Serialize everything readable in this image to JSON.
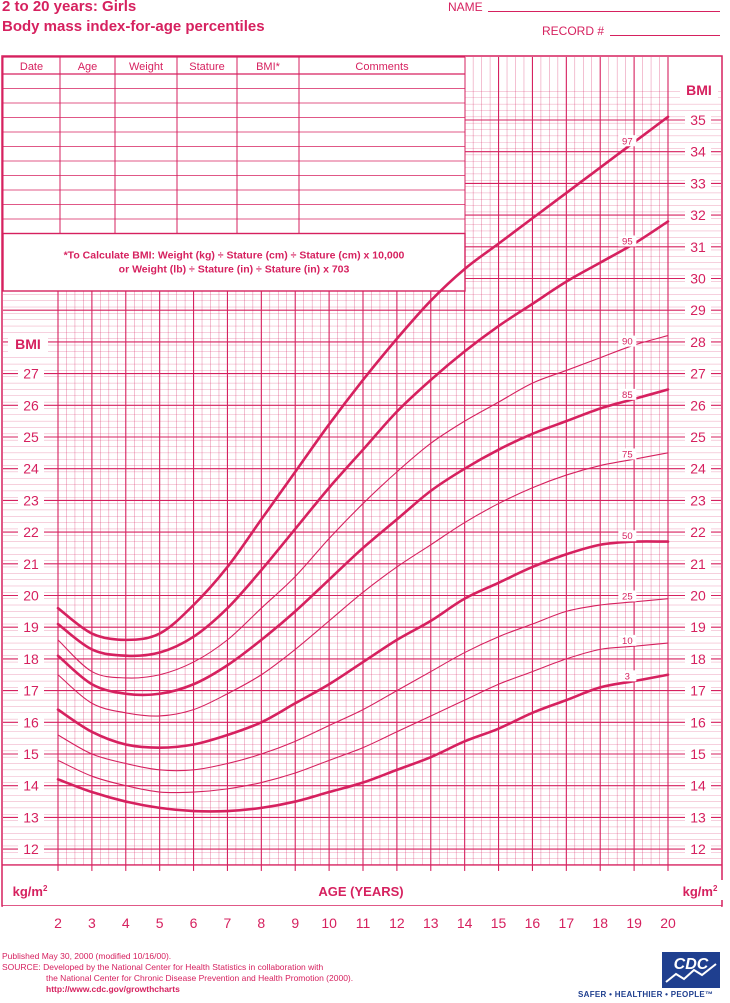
{
  "header": {
    "title_line1": "2 to 20 years: Girls",
    "title_line2": "Body mass index-for-age percentiles",
    "name_label": "NAME",
    "record_label": "RECORD #"
  },
  "record_table": {
    "columns": [
      "Date",
      "Age",
      "Weight",
      "Stature",
      "BMI*",
      "Comments"
    ],
    "row_count": 11
  },
  "formula": {
    "line1": "*To Calculate BMI: Weight (kg) ÷ Stature (cm) ÷ Stature (cm) x 10,000",
    "line2": "or Weight (lb) ÷ Stature (in) ÷ Stature (in) x 703"
  },
  "footer": {
    "line1": "Published May 30, 2000 (modified 10/16/00).",
    "line2": "SOURCE: Developed by the National Center for Health Statistics in collaboration with",
    "line3": "the National Center for Chronic Disease Prevention and Health Promotion (2000).",
    "url": "http://www.cdc.gov/growthcharts",
    "logo_text": "CDC",
    "tagline": "SAFER • HEALTHIER • PEOPLE™"
  },
  "colors": {
    "accent": "#d6215f",
    "logo_blue": "#1f3f8f"
  },
  "chart_data": {
    "type": "line",
    "xlabel": "AGE (YEARS)",
    "ylabel": "BMI",
    "y_unit": "kg/m²",
    "xlim": [
      2,
      20
    ],
    "ylim": [
      11,
      36
    ],
    "x_ticks": [
      2,
      3,
      4,
      5,
      6,
      7,
      8,
      9,
      10,
      11,
      12,
      13,
      14,
      15,
      16,
      17,
      18,
      19,
      20
    ],
    "y_ticks_right": [
      12,
      13,
      14,
      15,
      16,
      17,
      18,
      19,
      20,
      21,
      22,
      23,
      24,
      25,
      26,
      27,
      28,
      29,
      30,
      31,
      32,
      33,
      34,
      35
    ],
    "y_ticks_left": [
      12,
      13,
      14,
      15,
      16,
      17,
      18,
      19,
      20,
      21,
      22,
      23,
      24,
      25,
      26,
      27
    ],
    "x": [
      2,
      3,
      4,
      5,
      6,
      7,
      8,
      9,
      10,
      11,
      12,
      13,
      14,
      15,
      16,
      17,
      18,
      19,
      20
    ],
    "series": [
      {
        "name": "97",
        "bold": true,
        "values": [
          19.6,
          18.8,
          18.6,
          18.8,
          19.7,
          20.9,
          22.4,
          23.9,
          25.4,
          26.8,
          28.1,
          29.3,
          30.3,
          31.1,
          31.9,
          32.7,
          33.5,
          34.3,
          35.1
        ]
      },
      {
        "name": "95",
        "bold": true,
        "values": [
          19.1,
          18.3,
          18.1,
          18.2,
          18.7,
          19.6,
          20.8,
          22.1,
          23.4,
          24.6,
          25.8,
          26.8,
          27.7,
          28.5,
          29.2,
          29.9,
          30.5,
          31.1,
          31.8
        ]
      },
      {
        "name": "90",
        "bold": false,
        "values": [
          18.6,
          17.6,
          17.4,
          17.5,
          17.9,
          18.6,
          19.6,
          20.6,
          21.8,
          22.9,
          23.9,
          24.8,
          25.5,
          26.1,
          26.7,
          27.1,
          27.5,
          27.9,
          28.2
        ]
      },
      {
        "name": "85",
        "bold": true,
        "values": [
          18.1,
          17.2,
          16.9,
          16.9,
          17.2,
          17.8,
          18.6,
          19.5,
          20.5,
          21.5,
          22.4,
          23.3,
          24.0,
          24.6,
          25.1,
          25.5,
          25.9,
          26.2,
          26.5
        ]
      },
      {
        "name": "75",
        "bold": false,
        "values": [
          17.5,
          16.6,
          16.3,
          16.2,
          16.4,
          16.9,
          17.5,
          18.3,
          19.2,
          20.1,
          20.9,
          21.6,
          22.3,
          22.9,
          23.4,
          23.8,
          24.1,
          24.3,
          24.5
        ]
      },
      {
        "name": "50",
        "bold": true,
        "values": [
          16.4,
          15.7,
          15.3,
          15.2,
          15.3,
          15.6,
          16.0,
          16.6,
          17.2,
          17.9,
          18.6,
          19.2,
          19.9,
          20.4,
          20.9,
          21.3,
          21.6,
          21.7,
          21.7
        ]
      },
      {
        "name": "25",
        "bold": false,
        "values": [
          15.6,
          15.0,
          14.7,
          14.5,
          14.5,
          14.7,
          15.0,
          15.4,
          15.9,
          16.4,
          17.0,
          17.6,
          18.2,
          18.7,
          19.1,
          19.5,
          19.7,
          19.8,
          19.9
        ]
      },
      {
        "name": "10",
        "bold": false,
        "values": [
          14.8,
          14.3,
          14.0,
          13.8,
          13.8,
          13.9,
          14.1,
          14.4,
          14.8,
          15.2,
          15.7,
          16.2,
          16.7,
          17.2,
          17.6,
          18.0,
          18.3,
          18.4,
          18.5
        ]
      },
      {
        "name": "3",
        "bold": true,
        "values": [
          14.2,
          13.8,
          13.5,
          13.3,
          13.2,
          13.2,
          13.3,
          13.5,
          13.8,
          14.1,
          14.5,
          14.9,
          15.4,
          15.8,
          16.3,
          16.7,
          17.1,
          17.3,
          17.5
        ]
      }
    ]
  }
}
